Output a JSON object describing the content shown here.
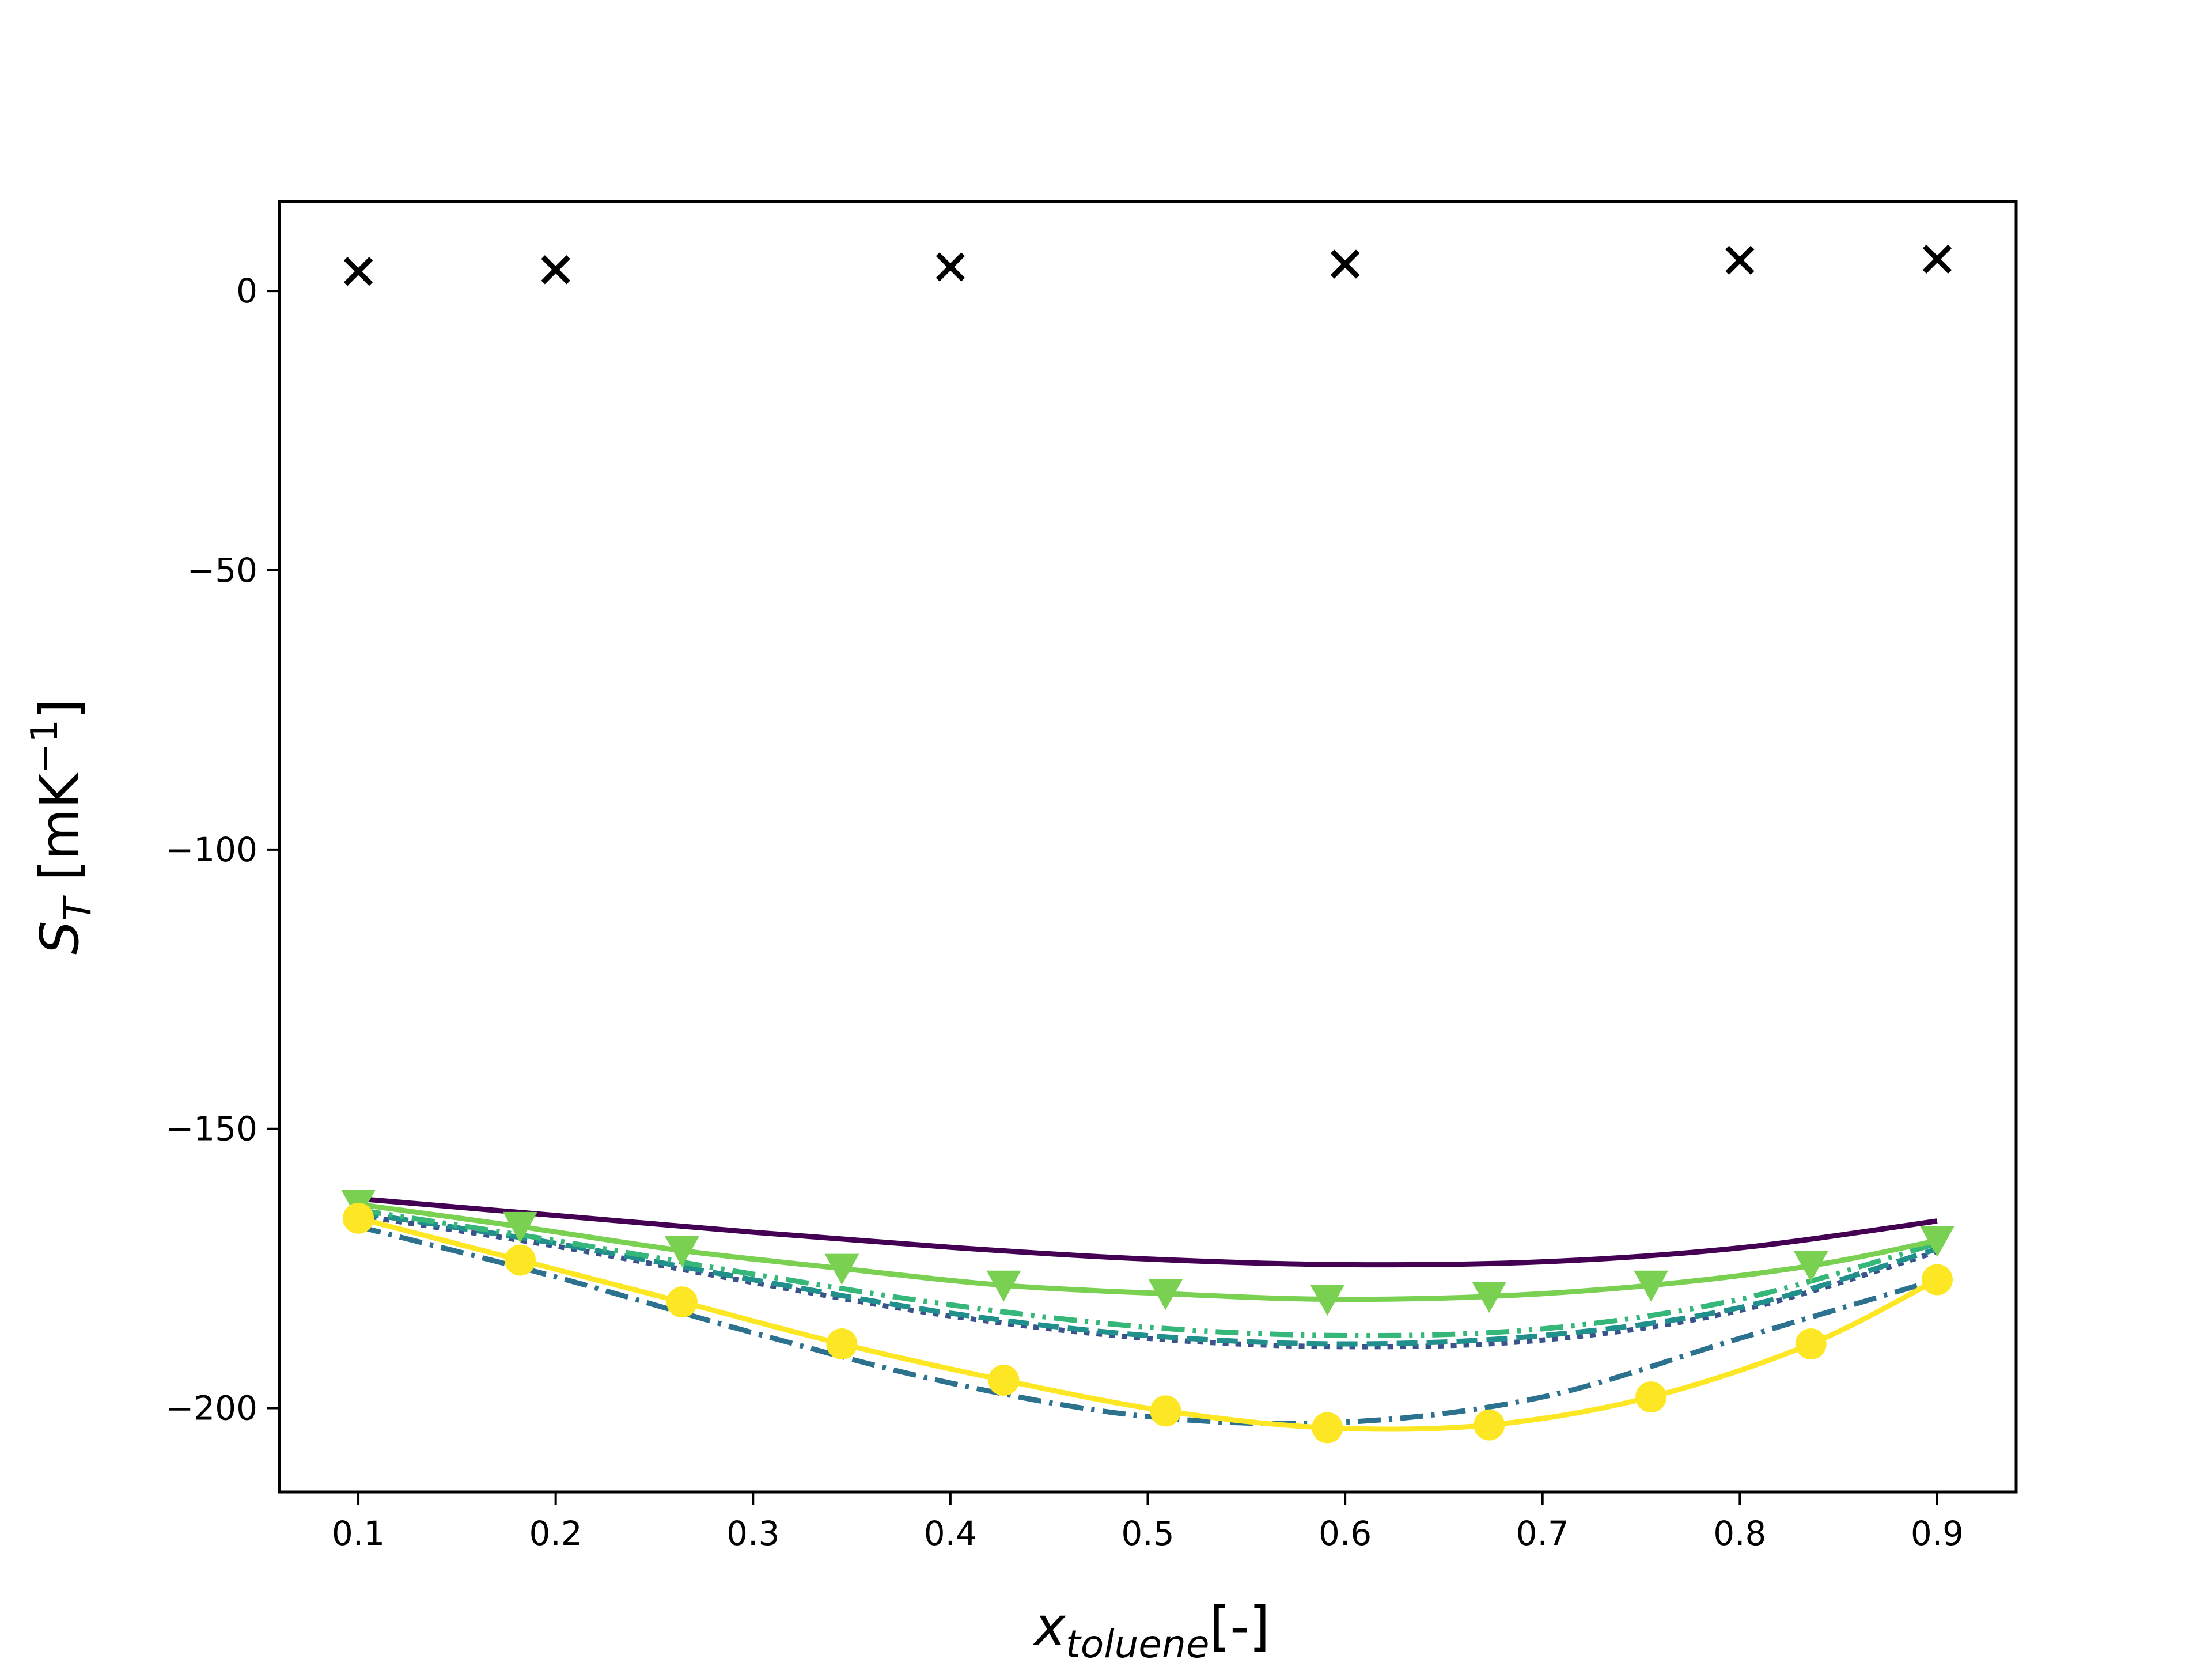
{
  "chart_data": {
    "type": "line",
    "xlim": [
      0.06,
      0.94
    ],
    "ylim": [
      -215,
      16
    ],
    "grid": false,
    "xticks": [
      {
        "value": 0.1,
        "label": "0.1"
      },
      {
        "value": 0.2,
        "label": "0.2"
      },
      {
        "value": 0.3,
        "label": "0.3"
      },
      {
        "value": 0.4,
        "label": "0.4"
      },
      {
        "value": 0.5,
        "label": "0.5"
      },
      {
        "value": 0.6,
        "label": "0.6"
      },
      {
        "value": 0.7,
        "label": "0.7"
      },
      {
        "value": 0.8,
        "label": "0.8"
      },
      {
        "value": 0.9,
        "label": "0.9"
      }
    ],
    "yticks": [
      {
        "value": 0,
        "label": "0"
      },
      {
        "value": -50,
        "label": "−50"
      },
      {
        "value": -100,
        "label": "−100"
      },
      {
        "value": -150,
        "label": "−150"
      },
      {
        "value": -200,
        "label": "−200"
      }
    ],
    "xlabel": {
      "main": "x",
      "sub": "toluene",
      "suffix": "[-]"
    },
    "ylabel": {
      "main": "S",
      "sub": "T",
      "units_pre": " [mK",
      "units_sup": "−1",
      "units_post": "]"
    },
    "series": [
      {
        "color": "#440154",
        "line": "solid",
        "marker": "none",
        "x": [
          0.1,
          0.2,
          0.3,
          0.4,
          0.5,
          0.6,
          0.7,
          0.8,
          0.9
        ],
        "y": [
          -162.5,
          -165.5,
          -168.5,
          -171.2,
          -173.3,
          -174.3,
          -173.8,
          -171.3,
          -166.5
        ]
      },
      {
        "color": "#3b528b",
        "line": "dotted",
        "marker": "none",
        "x": [
          0.1,
          0.2,
          0.3,
          0.4,
          0.5,
          0.6,
          0.7,
          0.8,
          0.9
        ],
        "y": [
          -165.5,
          -171.0,
          -177.5,
          -183.5,
          -187.5,
          -189.0,
          -187.8,
          -182.5,
          -172.0
        ]
      },
      {
        "color": "#21908d",
        "line": "dashed",
        "marker": "none",
        "x": [
          0.1,
          0.2,
          0.3,
          0.4,
          0.5,
          0.6,
          0.7,
          0.8,
          0.9
        ],
        "y": [
          -165.0,
          -170.5,
          -177.0,
          -183.0,
          -187.0,
          -188.5,
          -187.0,
          -182.0,
          -171.5
        ]
      },
      {
        "color": "#2c728e",
        "line": "dashdot",
        "marker": "none",
        "x": [
          0.1,
          0.2,
          0.3,
          0.4,
          0.5,
          0.6,
          0.7,
          0.8,
          0.9
        ],
        "y": [
          -167.5,
          -176.5,
          -186.5,
          -195.5,
          -201.5,
          -202.5,
          -198.0,
          -187.5,
          -177.0
        ]
      },
      {
        "color": "#35b779",
        "line": "dashdotdot",
        "marker": "none",
        "x": [
          0.1,
          0.2,
          0.3,
          0.4,
          0.5,
          0.6,
          0.7,
          0.8,
          0.9
        ],
        "y": [
          -164.5,
          -170.0,
          -176.0,
          -181.5,
          -185.5,
          -187.0,
          -185.8,
          -180.5,
          -170.5
        ]
      },
      {
        "color": "#7ad151",
        "line": "solid",
        "marker": "triangle-down",
        "x": [
          0.1,
          0.182,
          0.264,
          0.345,
          0.427,
          0.509,
          0.591,
          0.673,
          0.755,
          0.836,
          0.9
        ],
        "y": [
          -163.5,
          -167.5,
          -171.8,
          -175.0,
          -178.0,
          -179.5,
          -180.5,
          -180.0,
          -178.0,
          -174.5,
          -170.0
        ]
      },
      {
        "color": "#fde725",
        "line": "solid",
        "marker": "circle",
        "x": [
          0.1,
          0.182,
          0.264,
          0.345,
          0.427,
          0.509,
          0.591,
          0.673,
          0.755,
          0.836,
          0.9
        ],
        "y": [
          -166.0,
          -173.5,
          -181.0,
          -188.5,
          -195.0,
          -200.5,
          -203.5,
          -203.0,
          -198.0,
          -188.5,
          -177.0
        ]
      },
      {
        "color": "#000000",
        "line": "none",
        "marker": "x",
        "x": [
          0.1,
          0.2,
          0.4,
          0.6,
          0.8,
          0.9
        ],
        "y": [
          3.5,
          3.8,
          4.3,
          4.8,
          5.5,
          5.7
        ]
      }
    ]
  }
}
